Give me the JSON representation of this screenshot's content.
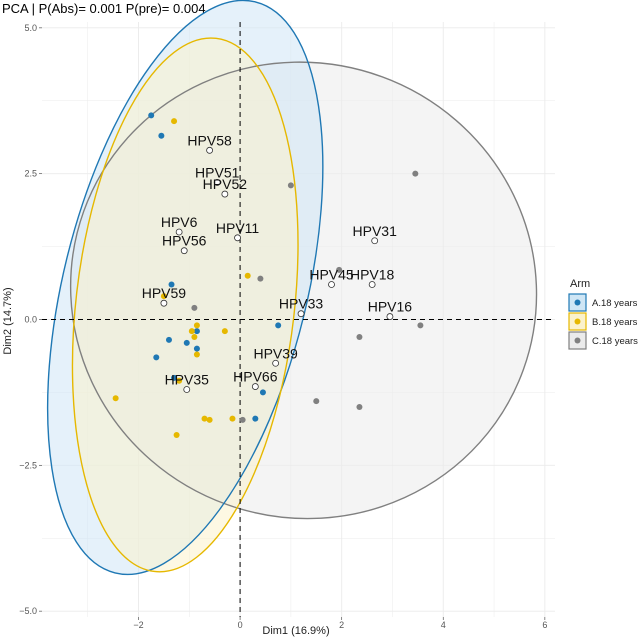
{
  "chart_data": {
    "type": "scatter",
    "title": "PCA | P(Abs)=  0.001   P(pre)=  0.004",
    "xlabel": "Dim1 (16.9%)",
    "ylabel": "Dim2 (14.7%)",
    "xlim": [
      -3.9,
      6.2
    ],
    "ylim": [
      -5.1,
      5.1
    ],
    "x_ticks": [
      -2,
      0,
      2,
      4,
      6
    ],
    "x_tick_labels": [
      "−2",
      "0",
      "2",
      "4",
      "6"
    ],
    "y_ticks": [
      -5,
      -2.5,
      0,
      2.5,
      5
    ],
    "y_tick_labels": [
      "−5.0",
      "−2.5",
      "0.0",
      "2.5",
      "5.0"
    ],
    "grid": true,
    "reference_lines": {
      "x": 0,
      "y": 0,
      "style": "dashed"
    },
    "legend": {
      "title": "Arm",
      "placement": "right",
      "entries": [
        {
          "label": "A.18 years",
          "color": "#1f78b4"
        },
        {
          "label": "B.18 years",
          "color": "#e6b800"
        },
        {
          "label": "C.18 years",
          "color": "#808080"
        }
      ]
    },
    "series": [
      {
        "name": "A.18 years",
        "color": "#1f78b4",
        "fill": "#cfe6f5",
        "x": [
          -1.75,
          -1.55,
          -1.35,
          -1.4,
          -1.65,
          -1.05,
          -0.85,
          -0.85,
          -1.3,
          0.75,
          0.45,
          0.3
        ],
        "y": [
          3.5,
          3.15,
          0.6,
          -0.35,
          -0.65,
          -0.4,
          -0.2,
          -0.5,
          -1.0,
          -0.1,
          -1.25,
          -1.7
        ],
        "ellipse": {
          "cx": -1.08,
          "cy": 0.55,
          "rx": 2.4,
          "ry": 5.04,
          "angle_deg": 13.8
        }
      },
      {
        "name": "B.18 years",
        "color": "#e6b800",
        "fill": "#fbf2cc",
        "x": [
          -1.3,
          -1.5,
          -2.45,
          -1.25,
          -0.9,
          -0.85,
          -0.85,
          -0.95,
          -0.7,
          -0.3,
          -0.6,
          0.15,
          -0.15,
          -1.2
        ],
        "y": [
          3.4,
          0.4,
          -1.35,
          -1.98,
          -0.3,
          -0.1,
          -0.6,
          -0.2,
          -1.7,
          -0.2,
          -1.72,
          0.75,
          -1.7,
          -1.05
        ],
        "ellipse": {
          "cx": -1.08,
          "cy": 0.25,
          "rx": 2.15,
          "ry": 4.6,
          "angle_deg": 6.6
        }
      },
      {
        "name": "C.18 years",
        "color": "#808080",
        "fill": "#ebebeb",
        "x": [
          1.0,
          3.45,
          0.4,
          1.95,
          2.35,
          3.55,
          2.35,
          1.5,
          -0.9,
          0.05
        ],
        "y": [
          2.3,
          2.5,
          0.7,
          0.85,
          -0.3,
          -0.1,
          -1.5,
          -1.4,
          0.2,
          -1.72
        ],
        "ellipse": {
          "cx": 1.25,
          "cy": 0.5,
          "rx": 4.6,
          "ry": 3.9,
          "angle_deg": 19.8
        }
      }
    ],
    "loadings": [
      {
        "label": "HPV58",
        "x": -0.6,
        "y": 2.9
      },
      {
        "label": "HPV51",
        "x": -0.45,
        "y": 2.35
      },
      {
        "label": "HPV52",
        "x": -0.3,
        "y": 2.15
      },
      {
        "label": "HPV6",
        "x": -1.2,
        "y": 1.5
      },
      {
        "label": "HPV11",
        "x": -0.05,
        "y": 1.4
      },
      {
        "label": "HPV56",
        "x": -1.1,
        "y": 1.18
      },
      {
        "label": "HPV59",
        "x": -1.5,
        "y": 0.28
      },
      {
        "label": "HPV31",
        "x": 2.65,
        "y": 1.35
      },
      {
        "label": "HPV45",
        "x": 1.8,
        "y": 0.6
      },
      {
        "label": "HPV18",
        "x": 2.6,
        "y": 0.6
      },
      {
        "label": "HPV33",
        "x": 1.2,
        "y": 0.1
      },
      {
        "label": "HPV16",
        "x": 2.95,
        "y": 0.05
      },
      {
        "label": "HPV39",
        "x": 0.7,
        "y": -0.75
      },
      {
        "label": "HPV66",
        "x": 0.3,
        "y": -1.15
      },
      {
        "label": "HPV35",
        "x": -1.05,
        "y": -1.2
      }
    ]
  }
}
